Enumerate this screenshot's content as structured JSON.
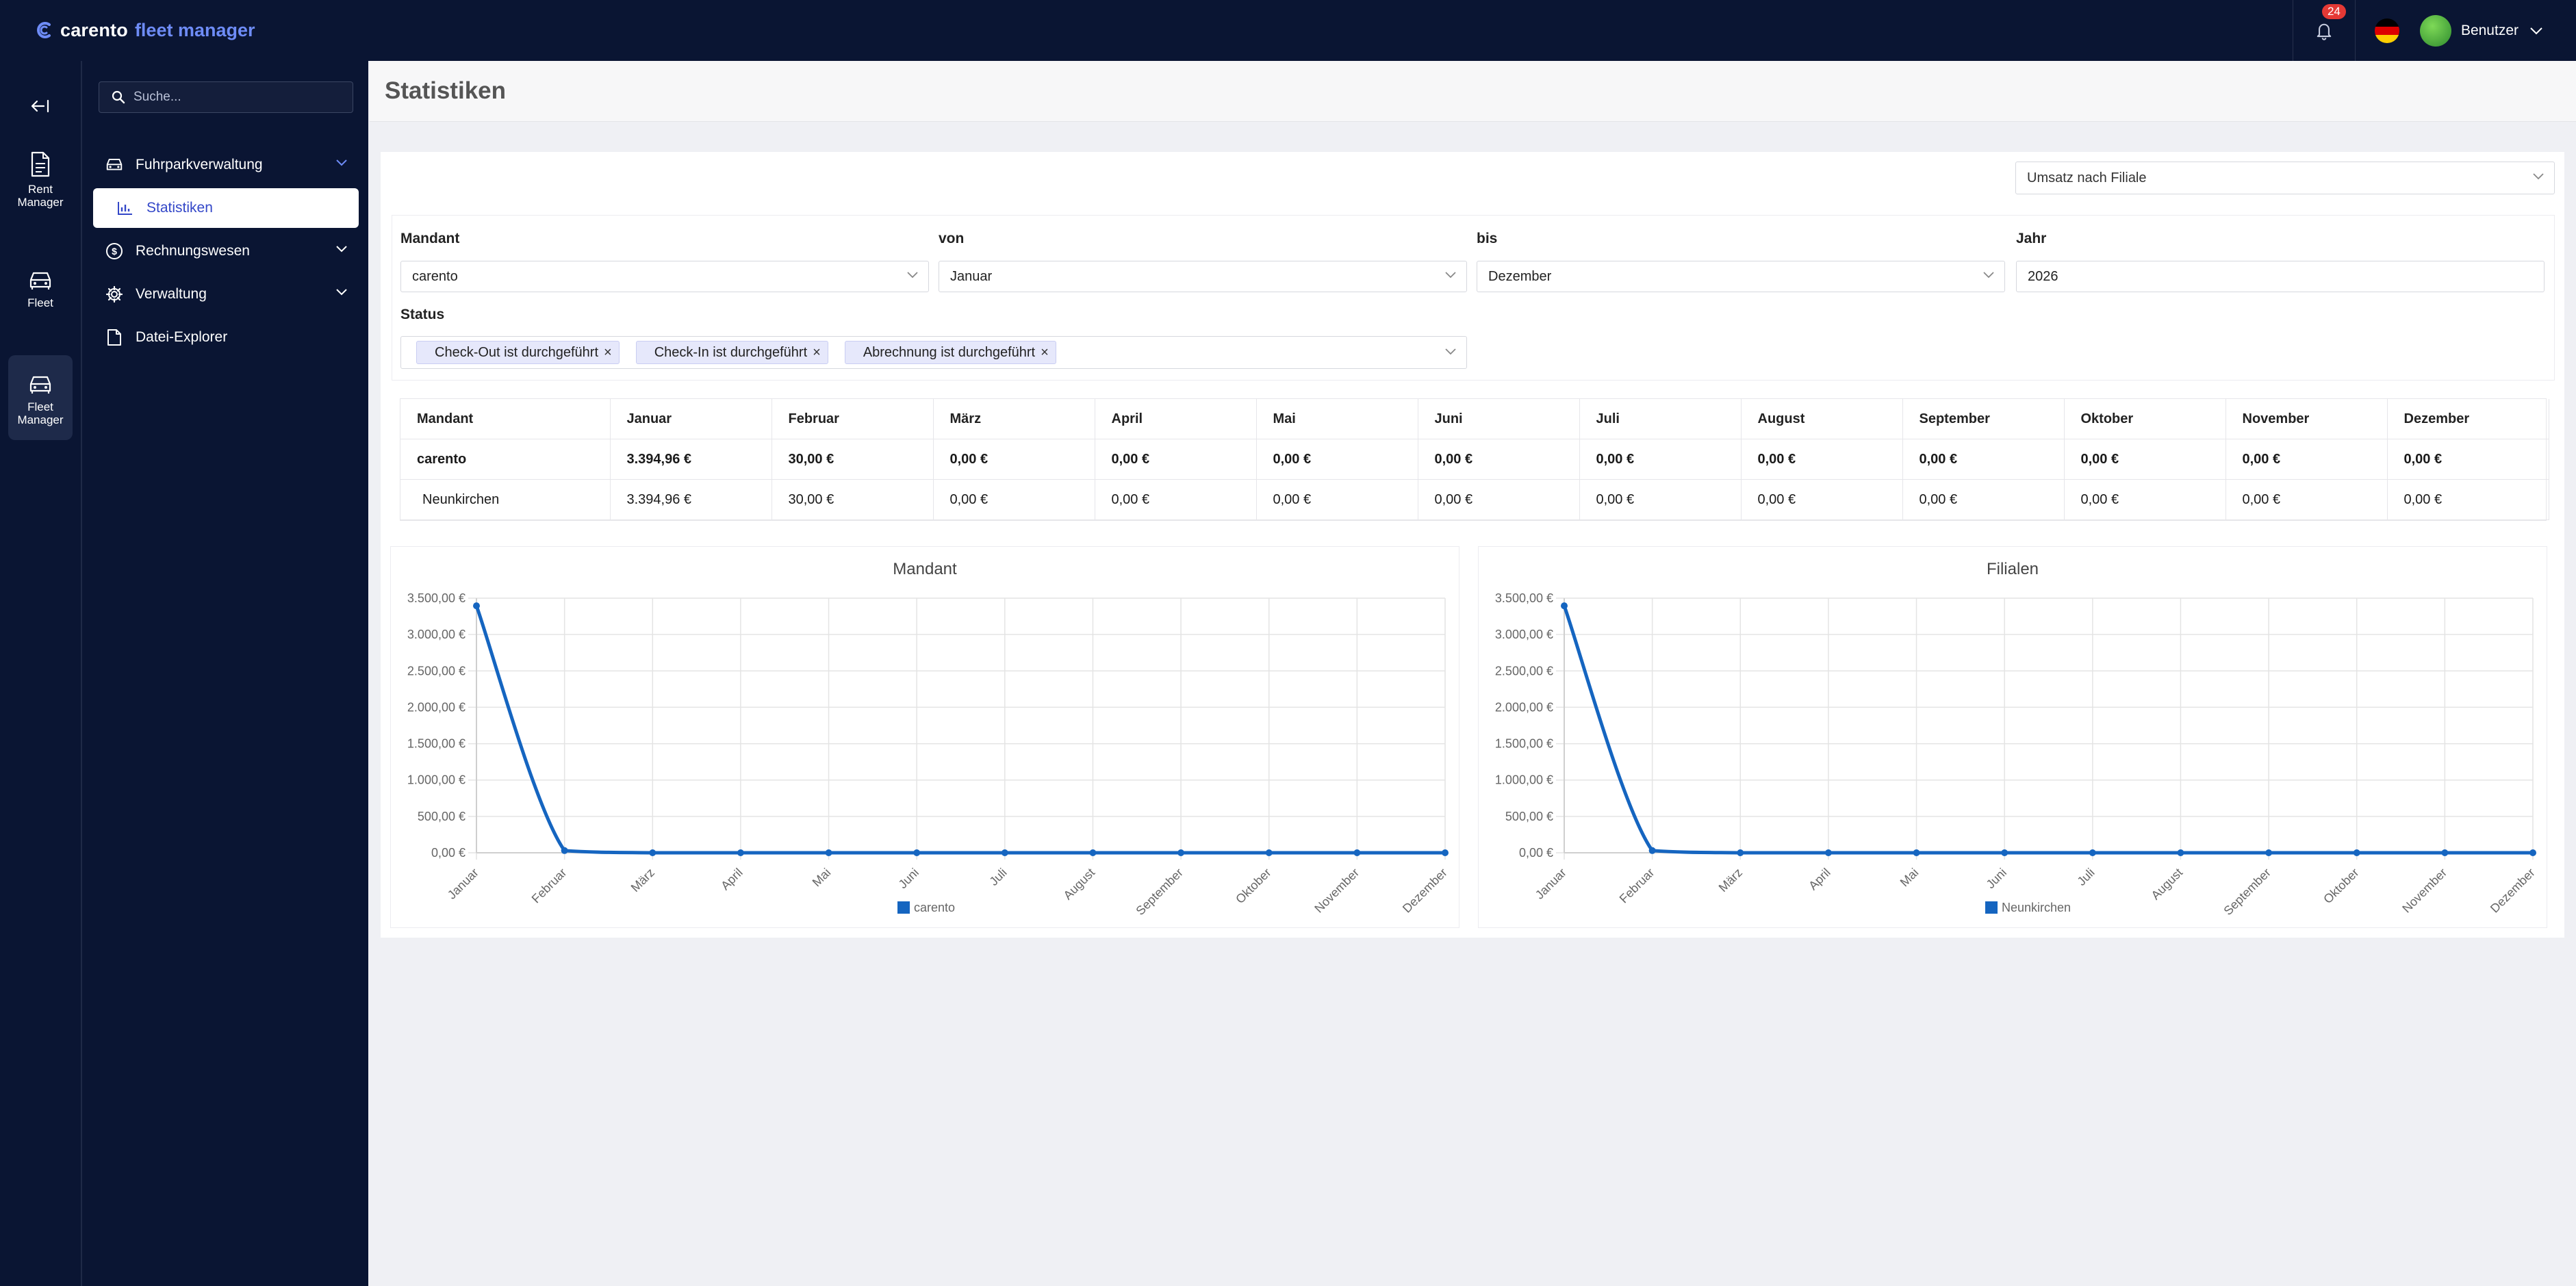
{
  "app": {
    "brand_name": "carento",
    "brand_sub": "fleet manager",
    "notification_count": "24",
    "user_name": "Benutzer"
  },
  "rail": {
    "items": [
      {
        "label": "Rent Manager",
        "icon": "document-icon"
      },
      {
        "label": "Fleet",
        "icon": "car-icon"
      },
      {
        "label": "Fleet Manager",
        "icon": "car-icon"
      }
    ]
  },
  "nav": {
    "search_placeholder": "Suche...",
    "items": [
      {
        "label": "Fuhrparkverwaltung",
        "icon": "car-icon",
        "expanded": true
      },
      {
        "label": "Statistiken",
        "icon": "bar-chart-icon",
        "selected": true
      },
      {
        "label": "Rechnungswesen",
        "icon": "dollar-circle-icon"
      },
      {
        "label": "Verwaltung",
        "icon": "gear-icon"
      },
      {
        "label": "Datei-Explorer",
        "icon": "file-icon"
      }
    ]
  },
  "page": {
    "title": "Statistiken"
  },
  "report_select": {
    "value": "Umsatz nach Filiale"
  },
  "filters": {
    "mandant": {
      "label": "Mandant",
      "value": "carento"
    },
    "von": {
      "label": "von",
      "value": "Januar"
    },
    "bis": {
      "label": "bis",
      "value": "Dezember"
    },
    "jahr": {
      "label": "Jahr",
      "value": "2026"
    },
    "status": {
      "label": "Status",
      "chips": [
        "Check-Out ist durchgeführt",
        "Check-In ist durchgeführt",
        "Abrechnung ist durchgeführt"
      ]
    }
  },
  "table": {
    "headers": [
      "Mandant",
      "Januar",
      "Februar",
      "März",
      "April",
      "Mai",
      "Juni",
      "Juli",
      "August",
      "September",
      "Oktober",
      "November",
      "Dezember"
    ],
    "rows": [
      [
        "carento",
        "3.394,96 €",
        "30,00 €",
        "0,00 €",
        "0,00 €",
        "0,00 €",
        "0,00 €",
        "0,00 €",
        "0,00 €",
        "0,00 €",
        "0,00 €",
        "0,00 €",
        "0,00 €"
      ],
      [
        "Neunkirchen",
        "3.394,96 €",
        "30,00 €",
        "0,00 €",
        "0,00 €",
        "0,00 €",
        "0,00 €",
        "0,00 €",
        "0,00 €",
        "0,00 €",
        "0,00 €",
        "0,00 €",
        "0,00 €"
      ]
    ]
  },
  "chart_data": [
    {
      "type": "line",
      "title": "Mandant",
      "categories": [
        "Januar",
        "Februar",
        "März",
        "April",
        "Mai",
        "Juni",
        "Juli",
        "August",
        "September",
        "Oktober",
        "November",
        "Dezember"
      ],
      "series": [
        {
          "name": "carento",
          "values": [
            3394.96,
            30,
            0,
            0,
            0,
            0,
            0,
            0,
            0,
            0,
            0,
            0
          ]
        }
      ],
      "ylim": [
        0,
        3500
      ],
      "yticks": [
        "0,00 €",
        "500,00 €",
        "1.000,00 €",
        "1.500,00 €",
        "2.000,00 €",
        "2.500,00 €",
        "3.000,00 €",
        "3.500,00 €"
      ],
      "color": "#1565c0",
      "grid": true,
      "legend": "bottom"
    },
    {
      "type": "line",
      "title": "Filialen",
      "categories": [
        "Januar",
        "Februar",
        "März",
        "April",
        "Mai",
        "Juni",
        "Juli",
        "August",
        "September",
        "Oktober",
        "November",
        "Dezember"
      ],
      "series": [
        {
          "name": "Neunkirchen",
          "values": [
            3394.96,
            30,
            0,
            0,
            0,
            0,
            0,
            0,
            0,
            0,
            0,
            0
          ]
        }
      ],
      "ylim": [
        0,
        3500
      ],
      "yticks": [
        "0,00 €",
        "500,00 €",
        "1.000,00 €",
        "1.500,00 €",
        "2.000,00 €",
        "2.500,00 €",
        "3.000,00 €",
        "3.500,00 €"
      ],
      "color": "#1565c0",
      "grid": true,
      "legend": "bottom"
    }
  ]
}
